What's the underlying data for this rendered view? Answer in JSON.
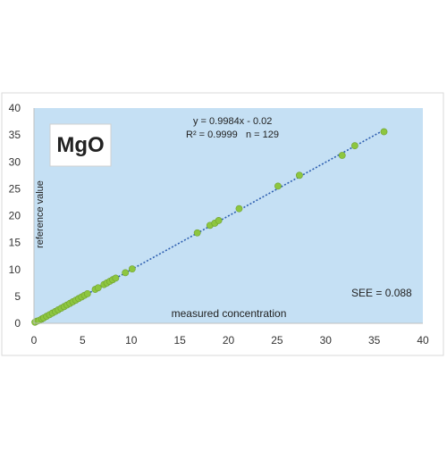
{
  "chart_data": {
    "type": "scatter",
    "title": "MgO",
    "xlabel": "measured concentration",
    "ylabel": "reference value",
    "xlim": [
      0,
      40
    ],
    "ylim": [
      0,
      40
    ],
    "x_ticks": [
      "0",
      "5",
      "10",
      "15",
      "20",
      "25",
      "30",
      "35",
      "40"
    ],
    "y_ticks": [
      "0",
      "5",
      "10",
      "15",
      "20",
      "25",
      "30",
      "35",
      "40"
    ],
    "grid": false,
    "plot_background": "#c5e0f4",
    "point_color": "#8dc63f",
    "trendline_color": "#2e5fb0",
    "equation": "y = 0.9984x - 0.02",
    "r_squared_n": "R² = 0.9999   n = 129",
    "see": "SEE = 0.088",
    "trendline": {
      "slope": 0.9984,
      "intercept": -0.02,
      "x_range": [
        0,
        36
      ]
    },
    "points": [
      {
        "x": 0.1,
        "y": 0.2
      },
      {
        "x": 0.3,
        "y": 0.4
      },
      {
        "x": 0.5,
        "y": 0.5
      },
      {
        "x": 0.8,
        "y": 0.8
      },
      {
        "x": 1.0,
        "y": 1.0
      },
      {
        "x": 1.3,
        "y": 1.3
      },
      {
        "x": 1.6,
        "y": 1.6
      },
      {
        "x": 1.9,
        "y": 1.9
      },
      {
        "x": 2.2,
        "y": 2.2
      },
      {
        "x": 2.5,
        "y": 2.5
      },
      {
        "x": 2.8,
        "y": 2.8
      },
      {
        "x": 3.1,
        "y": 3.1
      },
      {
        "x": 3.4,
        "y": 3.4
      },
      {
        "x": 3.7,
        "y": 3.7
      },
      {
        "x": 4.0,
        "y": 4.0
      },
      {
        "x": 4.3,
        "y": 4.3
      },
      {
        "x": 4.6,
        "y": 4.6
      },
      {
        "x": 4.9,
        "y": 4.9
      },
      {
        "x": 5.2,
        "y": 5.2
      },
      {
        "x": 5.5,
        "y": 5.5
      },
      {
        "x": 6.3,
        "y": 6.3
      },
      {
        "x": 6.6,
        "y": 6.6
      },
      {
        "x": 7.2,
        "y": 7.2
      },
      {
        "x": 7.5,
        "y": 7.5
      },
      {
        "x": 7.8,
        "y": 7.8
      },
      {
        "x": 8.1,
        "y": 8.1
      },
      {
        "x": 8.4,
        "y": 8.4
      },
      {
        "x": 9.4,
        "y": 9.4
      },
      {
        "x": 10.1,
        "y": 10.1
      },
      {
        "x": 16.8,
        "y": 16.8
      },
      {
        "x": 18.1,
        "y": 18.2
      },
      {
        "x": 18.6,
        "y": 18.6
      },
      {
        "x": 19.0,
        "y": 19.1
      },
      {
        "x": 21.1,
        "y": 21.3
      },
      {
        "x": 25.1,
        "y": 25.5
      },
      {
        "x": 27.3,
        "y": 27.5
      },
      {
        "x": 31.7,
        "y": 31.2
      },
      {
        "x": 33.0,
        "y": 33.0
      },
      {
        "x": 36.0,
        "y": 35.6
      }
    ]
  }
}
